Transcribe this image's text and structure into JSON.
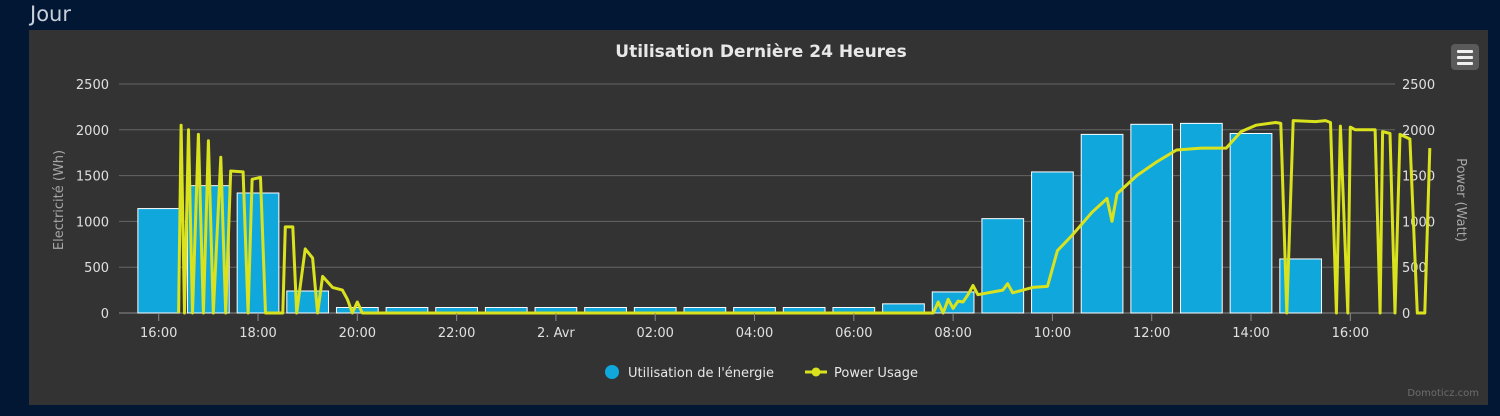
{
  "section_title": "Jour",
  "credits": "Domoticz.com",
  "menu_icon": "hamburger-icon",
  "colors": {
    "energy_bar": "#10a8dc",
    "power_line": "#d9e21d",
    "background": "#333333",
    "page_background": "#021733",
    "grid": "#666666",
    "text": "#dddddd"
  },
  "chart_data": {
    "type": "bar",
    "title": "Utilisation Dernière 24 Heures",
    "x_ticks": [
      "16:00",
      "18:00",
      "20:00",
      "22:00",
      "2. Avr",
      "02:00",
      "04:00",
      "06:00",
      "08:00",
      "10:00",
      "12:00",
      "14:00",
      "16:00"
    ],
    "x_range_hours": [
      15.2,
      16.9
    ],
    "y_left": {
      "label": "Electricité (Wh)",
      "ticks": [
        "0",
        "500",
        "1000",
        "1500",
        "2000",
        "2500"
      ],
      "range": [
        0,
        2500
      ]
    },
    "y_right": {
      "label": "Power (Watt)",
      "ticks": [
        "0",
        "500",
        "1000",
        "1500",
        "2000",
        "2500"
      ],
      "range": [
        0,
        2500
      ]
    },
    "grid": true,
    "legend_position": "bottom-center",
    "series": [
      {
        "name": "Utilisation de l'énergie",
        "type": "bar",
        "axis": "left",
        "hours": [
          16,
          17,
          18,
          19,
          20,
          21,
          22,
          23,
          24,
          25,
          26,
          27,
          28,
          29,
          30,
          31,
          32,
          33,
          34,
          35,
          36,
          37,
          38,
          39,
          40
        ],
        "values": [
          1140,
          1390,
          1310,
          240,
          60,
          60,
          60,
          60,
          60,
          60,
          60,
          60,
          60,
          60,
          60,
          100,
          230,
          1030,
          1540,
          1950,
          2060,
          2070,
          1960,
          590,
          0
        ]
      },
      {
        "name": "Power Usage",
        "type": "line",
        "axis": "right",
        "points": [
          [
            16.4,
            0
          ],
          [
            16.45,
            2050
          ],
          [
            16.52,
            0
          ],
          [
            16.6,
            2000
          ],
          [
            16.68,
            0
          ],
          [
            16.8,
            1950
          ],
          [
            16.9,
            0
          ],
          [
            17.0,
            1880
          ],
          [
            17.1,
            0
          ],
          [
            17.25,
            1700
          ],
          [
            17.35,
            0
          ],
          [
            17.45,
            1550
          ],
          [
            17.7,
            1540
          ],
          [
            17.8,
            0
          ],
          [
            17.88,
            1460
          ],
          [
            18.05,
            1480
          ],
          [
            18.15,
            0
          ],
          [
            18.5,
            0
          ],
          [
            18.55,
            940
          ],
          [
            18.7,
            940
          ],
          [
            18.78,
            0
          ],
          [
            18.95,
            700
          ],
          [
            19.1,
            600
          ],
          [
            19.2,
            0
          ],
          [
            19.3,
            400
          ],
          [
            19.5,
            280
          ],
          [
            19.7,
            250
          ],
          [
            19.8,
            150
          ],
          [
            19.9,
            0
          ],
          [
            20.0,
            120
          ],
          [
            20.1,
            0
          ],
          [
            31.6,
            0
          ],
          [
            31.7,
            120
          ],
          [
            31.8,
            0
          ],
          [
            31.9,
            150
          ],
          [
            32.0,
            50
          ],
          [
            32.1,
            130
          ],
          [
            32.2,
            120
          ],
          [
            32.3,
            200
          ],
          [
            32.4,
            300
          ],
          [
            32.5,
            200
          ],
          [
            33.0,
            250
          ],
          [
            33.1,
            320
          ],
          [
            33.2,
            220
          ],
          [
            33.6,
            280
          ],
          [
            33.9,
            290
          ],
          [
            34.1,
            680
          ],
          [
            34.4,
            850
          ],
          [
            34.8,
            1100
          ],
          [
            35.0,
            1200
          ],
          [
            35.1,
            1250
          ],
          [
            35.2,
            1000
          ],
          [
            35.3,
            1300
          ],
          [
            35.7,
            1500
          ],
          [
            36.1,
            1650
          ],
          [
            36.5,
            1780
          ],
          [
            37.0,
            1800
          ],
          [
            37.5,
            1800
          ],
          [
            37.8,
            1980
          ],
          [
            38.1,
            2050
          ],
          [
            38.5,
            2080
          ],
          [
            38.6,
            2070
          ],
          [
            38.72,
            0
          ],
          [
            38.85,
            2100
          ],
          [
            39.3,
            2090
          ],
          [
            39.5,
            2100
          ],
          [
            39.6,
            2080
          ],
          [
            39.72,
            0
          ],
          [
            39.8,
            2040
          ],
          [
            39.95,
            0
          ],
          [
            40.0,
            2030
          ],
          [
            40.1,
            2000
          ],
          [
            40.5,
            2000
          ],
          [
            40.6,
            0
          ],
          [
            40.65,
            1980
          ],
          [
            40.8,
            1960
          ],
          [
            40.9,
            0
          ],
          [
            41.0,
            1950
          ],
          [
            41.2,
            1900
          ],
          [
            41.35,
            0
          ],
          [
            41.5,
            0
          ],
          [
            41.6,
            1800
          ]
        ]
      }
    ]
  }
}
